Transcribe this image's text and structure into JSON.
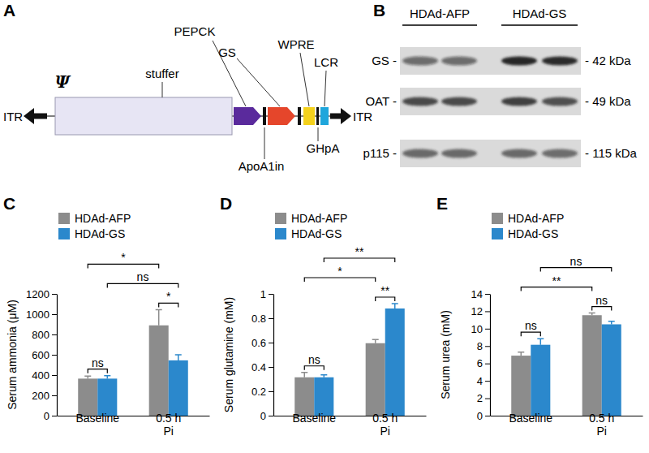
{
  "panel_labels": [
    "A",
    "B",
    "C",
    "D",
    "E"
  ],
  "diagram": {
    "elements": [
      "ITR",
      "Ψ",
      "stuffer",
      "PEPCK",
      "ApoA1in",
      "GS",
      "WPRE",
      "GHpA",
      "LCR",
      "ITR"
    ]
  },
  "blot": {
    "groups": [
      "HDAd-AFP",
      "HDAd-GS"
    ],
    "rows": [
      {
        "label": "GS -",
        "size": "- 42 kDa",
        "bands": [
          0.55,
          0.55,
          0.95,
          0.9
        ]
      },
      {
        "label": "OAT -",
        "size": "- 49 kDa",
        "bands": [
          0.75,
          0.75,
          0.8,
          0.72
        ]
      },
      {
        "label": "p115 -",
        "size": "- 115 kDa",
        "bands": [
          0.6,
          0.6,
          0.6,
          0.58
        ]
      }
    ]
  },
  "chart_data": [
    {
      "type": "bar",
      "ylabel": "Serum ammonia (μM)",
      "categories": [
        "Baseline",
        "0.5 h\nPi"
      ],
      "series": [
        {
          "name": "HDAd-AFP",
          "color": "#8c8c8c",
          "values": [
            365,
            890
          ],
          "errors": [
            25,
            155
          ]
        },
        {
          "name": "HDAd-GS",
          "color": "#2b88cc",
          "values": [
            365,
            545
          ],
          "errors": [
            30,
            55
          ]
        }
      ],
      "ylim": [
        0,
        1200
      ],
      "yticks": [
        0,
        200,
        400,
        600,
        800,
        1000,
        1200
      ],
      "legend": "upper left",
      "annotations": [
        {
          "text": "ns",
          "between": [
            [
              "HDAd-AFP",
              "Baseline"
            ],
            [
              "HDAd-GS",
              "Baseline"
            ]
          ]
        },
        {
          "text": "*",
          "between": [
            [
              "HDAd-AFP",
              "Baseline"
            ],
            [
              "HDAd-AFP",
              "0.5 h\nPi"
            ]
          ]
        },
        {
          "text": "ns",
          "between": [
            [
              "HDAd-GS",
              "Baseline"
            ],
            [
              "HDAd-GS",
              "0.5 h\nPi"
            ]
          ]
        },
        {
          "text": "*",
          "between": [
            [
              "HDAd-AFP",
              "0.5 h\nPi"
            ],
            [
              "HDAd-GS",
              "0.5 h\nPi"
            ]
          ]
        }
      ]
    },
    {
      "type": "bar",
      "ylabel": "Serum glutamine (mM)",
      "categories": [
        "Baseline",
        "0.5 h\nPi"
      ],
      "series": [
        {
          "name": "HDAd-AFP",
          "color": "#8c8c8c",
          "values": [
            0.315,
            0.595
          ],
          "errors": [
            0.04,
            0.03
          ]
        },
        {
          "name": "HDAd-GS",
          "color": "#2b88cc",
          "values": [
            0.315,
            0.88
          ],
          "errors": [
            0.02,
            0.04
          ]
        }
      ],
      "ylim": [
        0,
        1
      ],
      "yticks": [
        0,
        0.2,
        0.4,
        0.6,
        0.8,
        1
      ],
      "legend": "upper left",
      "annotations": [
        {
          "text": "ns",
          "between": [
            [
              "HDAd-AFP",
              "Baseline"
            ],
            [
              "HDAd-GS",
              "Baseline"
            ]
          ]
        },
        {
          "text": "*",
          "between": [
            [
              "HDAd-AFP",
              "Baseline"
            ],
            [
              "HDAd-AFP",
              "0.5 h\nPi"
            ]
          ]
        },
        {
          "text": "**",
          "between": [
            [
              "HDAd-GS",
              "Baseline"
            ],
            [
              "HDAd-GS",
              "0.5 h\nPi"
            ]
          ]
        },
        {
          "text": "**",
          "between": [
            [
              "HDAd-AFP",
              "0.5 h\nPi"
            ],
            [
              "HDAd-GS",
              "0.5 h\nPi"
            ]
          ]
        }
      ]
    },
    {
      "type": "bar",
      "ylabel": "Serum urea (mM)",
      "categories": [
        "Baseline",
        "0.5 h\nPi"
      ],
      "series": [
        {
          "name": "HDAd-AFP",
          "color": "#8c8c8c",
          "values": [
            6.9,
            11.55
          ],
          "errors": [
            0.4,
            0.25
          ]
        },
        {
          "name": "HDAd-GS",
          "color": "#2b88cc",
          "values": [
            8.15,
            10.5
          ],
          "errors": [
            0.7,
            0.35
          ]
        }
      ],
      "ylim": [
        0,
        14
      ],
      "yticks": [
        0,
        2,
        4,
        6,
        8,
        10,
        12,
        14
      ],
      "legend": "upper left",
      "annotations": [
        {
          "text": "ns",
          "between": [
            [
              "HDAd-AFP",
              "Baseline"
            ],
            [
              "HDAd-GS",
              "Baseline"
            ]
          ]
        },
        {
          "text": "**",
          "between": [
            [
              "HDAd-AFP",
              "Baseline"
            ],
            [
              "HDAd-AFP",
              "0.5 h\nPi"
            ]
          ]
        },
        {
          "text": "ns",
          "between": [
            [
              "HDAd-GS",
              "Baseline"
            ],
            [
              "HDAd-GS",
              "0.5 h\nPi"
            ]
          ]
        },
        {
          "text": "ns",
          "between": [
            [
              "HDAd-AFP",
              "0.5 h\nPi"
            ],
            [
              "HDAd-GS",
              "0.5 h\nPi"
            ]
          ]
        }
      ]
    }
  ]
}
